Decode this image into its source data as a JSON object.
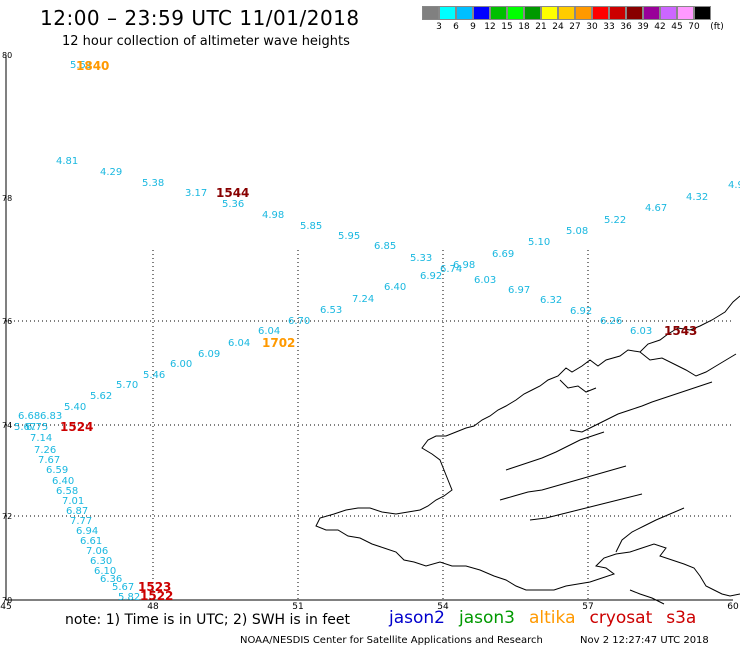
{
  "title": "12:00  –  23:59 UTC 11/01/2018",
  "subtitle": "12 hour collection of altimeter wave heights",
  "legend": {
    "unit": "(ft)",
    "colors": [
      "#808080",
      "#00ffff",
      "#00bfff",
      "#0000ff",
      "#00bf00",
      "#00ff00",
      "#009900",
      "#ffff00",
      "#ffcc00",
      "#ff9900",
      "#ff0000",
      "#cc0000",
      "#880000",
      "#990099",
      "#cc66ff",
      "#ff99ff",
      "#000000"
    ],
    "labels": [
      "3",
      "6",
      "9",
      "12",
      "15",
      "18",
      "21",
      "24",
      "27",
      "30",
      "33",
      "36",
      "39",
      "42",
      "45",
      "70"
    ]
  },
  "axes": {
    "lat_labels": [
      "80",
      "78",
      "76",
      "74",
      "72",
      "70"
    ],
    "lon_labels": [
      "45",
      "48",
      "51",
      "54",
      "57",
      "60"
    ]
  },
  "track_values": [
    "5.51",
    "4.81",
    "4.29",
    "5.38",
    "3.17",
    "5.36",
    "4.98",
    "5.85",
    "5.95",
    "6.85",
    "5.33",
    "6.92",
    "6.74",
    "6.98",
    "6.69",
    "6.03",
    "5.10",
    "6.97",
    "5.08",
    "6.32",
    "5.22",
    "6.92",
    "4.67",
    "6.26",
    "4.32",
    "6.03",
    "4.9",
    "6.04",
    "6.70",
    "6.53",
    "7.24",
    "6.40",
    "6.04",
    "6.09",
    "6.00",
    "5.46",
    "5.70",
    "5.62",
    "5.40",
    "6.68",
    "6.83",
    "5.67",
    "6.75",
    "7.14",
    "7.26",
    "7.67",
    "6.59",
    "6.40",
    "6.58",
    "7.01",
    "6.87",
    "7.77",
    "6.94",
    "6.61",
    "7.06",
    "6.30",
    "6.10",
    "6.36",
    "5.67",
    "5.82"
  ],
  "time_labels": [
    "1840",
    "1544",
    "1702",
    "1524",
    "1543",
    "1523",
    "1522"
  ],
  "note": "note:  1) Time is in UTC;  2) SWH is in feet",
  "satellites": [
    {
      "name": "jason2",
      "color": "#0000cc"
    },
    {
      "name": "jason3",
      "color": "#009900"
    },
    {
      "name": "altika",
      "color": "#ff9900"
    },
    {
      "name": "cryosat",
      "color": "#cc0000"
    },
    {
      "name": "s3a",
      "color": "#cc0000"
    }
  ],
  "credit": "NOAA/NESDIS Center for Satellite Applications and Research",
  "credit_date": "Nov  2 12:27:47 UTC 2018"
}
